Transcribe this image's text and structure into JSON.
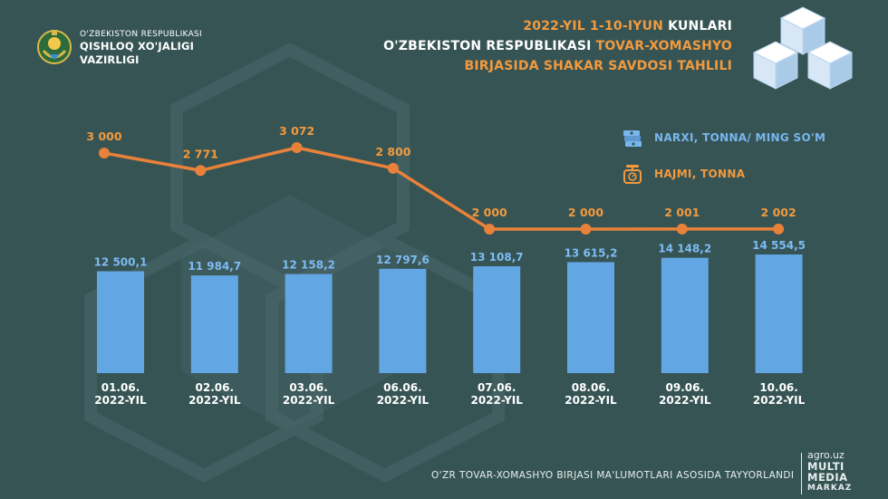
{
  "header": {
    "ministry_small": "O'ZBEKISTON RESPUBLIKASI",
    "ministry_line1": "QISHLOQ XO'JALIGI",
    "ministry_line2": "VAZIRLIGI",
    "title_line1_orange": "2022-YIL 1-10-IYUN",
    "title_line1_white": "KUNLARI",
    "title_line2_white": "O'ZBEKISTON RESPUBLIKASI",
    "title_line2_orange": "TOVAR-XOMASHYO",
    "title_line3_orange": "BIRJASIDA SHAKAR SAVDOSI TAHLILI"
  },
  "legend": {
    "price_label": "NARXI, TONNA/ MING SO'M",
    "volume_label": "HAJMI, TONNA"
  },
  "footer": {
    "note": "O'ZR TOVAR-XOMASHYO BIRJASI MA'LUMOTLARI ASOSIDA TAYYORLANDI",
    "brand_site": "agro.uz",
    "brand_w1": "MULTI",
    "brand_w2": "MEDIA",
    "brand_w3": "MARKAZ"
  },
  "colors": {
    "background": "#375455",
    "bar": "#62a6e4",
    "bar_label": "#7dbcf2",
    "line": "#e8813a",
    "line_label": "#f29a3d"
  },
  "chart_data": {
    "type": "bar+line",
    "categories": [
      [
        "01.06.",
        "2022-YIL"
      ],
      [
        "02.06.",
        "2022-YIL"
      ],
      [
        "03.06.",
        "2022-YIL"
      ],
      [
        "06.06.",
        "2022-YIL"
      ],
      [
        "07.06.",
        "2022-YIL"
      ],
      [
        "08.06.",
        "2022-YIL"
      ],
      [
        "09.06.",
        "2022-YIL"
      ],
      [
        "10.06.",
        "2022-YIL"
      ]
    ],
    "series": [
      {
        "name": "NARXI, TONNA/ MING SO'M",
        "kind": "bar",
        "values": [
          12500.1,
          11984.7,
          12158.2,
          12797.6,
          13108.7,
          13615.2,
          14148.2,
          14554.5
        ],
        "labels": [
          "12 500,1",
          "11 984,7",
          "12 158,2",
          "12 797,6",
          "13 108,7",
          "13 615,2",
          "14 148,2",
          "14 554,5"
        ]
      },
      {
        "name": "HAJMI, TONNA",
        "kind": "line",
        "values": [
          3000,
          2771,
          3072,
          2800,
          2000,
          2000,
          2001,
          2002
        ],
        "labels": [
          "3 000",
          "2 771",
          "3 072",
          "2 800",
          "2 000",
          "2 000",
          "2 001",
          "2 002"
        ]
      }
    ],
    "title": "2022-YIL 1-10-IYUN KUNLARI O'ZBEKISTON RESPUBLIKASI TOVAR-XOMASHYO BIRJASIDA SHAKAR SAVDOSI TAHLILI"
  }
}
